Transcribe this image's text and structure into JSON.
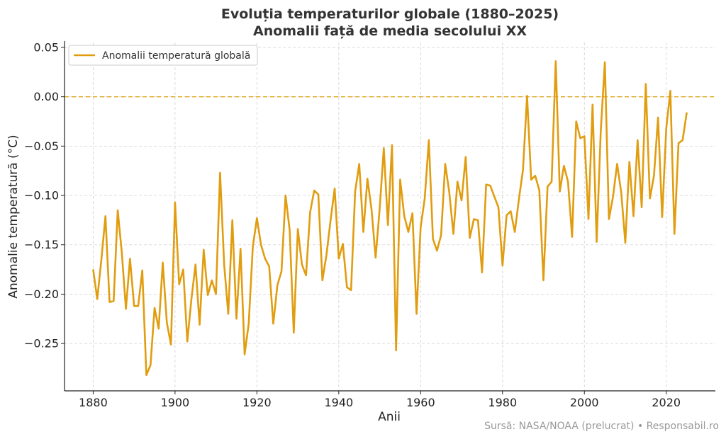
{
  "chart_data": {
    "type": "line",
    "title": "Evoluția temperaturilor globale (1880–2025)",
    "subtitle": "Anomalii față de media secolului XX",
    "xlabel": "Anii",
    "ylabel": "Anomalie temperatură (°C)",
    "xlim": [
      1873,
      2032
    ],
    "ylim": [
      -0.298,
      0.055
    ],
    "x_ticks": [
      1880,
      1900,
      1920,
      1940,
      1960,
      1980,
      2000,
      2020
    ],
    "y_ticks": [
      0.05,
      0.0,
      -0.05,
      -0.1,
      -0.15,
      -0.2,
      -0.25
    ],
    "grid": true,
    "legend_position": "top-left",
    "reference_line": {
      "y": 0.0,
      "style": "dashed",
      "color": "#E1A61A"
    },
    "series": [
      {
        "name": "Anomalii temperatură globală",
        "color": "#E19D10",
        "x": [
          1880,
          1881,
          1882,
          1883,
          1884,
          1885,
          1886,
          1887,
          1888,
          1889,
          1890,
          1891,
          1892,
          1893,
          1894,
          1895,
          1896,
          1897,
          1898,
          1899,
          1900,
          1901,
          1902,
          1903,
          1904,
          1905,
          1906,
          1907,
          1908,
          1909,
          1910,
          1911,
          1912,
          1913,
          1914,
          1915,
          1916,
          1917,
          1918,
          1919,
          1920,
          1921,
          1922,
          1923,
          1924,
          1925,
          1926,
          1927,
          1928,
          1929,
          1930,
          1931,
          1932,
          1933,
          1934,
          1935,
          1936,
          1937,
          1938,
          1939,
          1940,
          1941,
          1942,
          1943,
          1944,
          1945,
          1946,
          1947,
          1948,
          1949,
          1950,
          1951,
          1952,
          1953,
          1954,
          1955,
          1956,
          1957,
          1958,
          1959,
          1960,
          1961,
          1962,
          1963,
          1964,
          1965,
          1966,
          1967,
          1968,
          1969,
          1970,
          1971,
          1972,
          1973,
          1974,
          1975,
          1976,
          1977,
          1978,
          1979,
          1980,
          1981,
          1982,
          1983,
          1984,
          1985,
          1986,
          1987,
          1988,
          1989,
          1990,
          1991,
          1992,
          1993,
          1994,
          1995,
          1996,
          1997,
          1998,
          1999,
          2000,
          2001,
          2002,
          2003,
          2004,
          2005,
          2006,
          2007,
          2008,
          2009,
          2010,
          2011,
          2012,
          2013,
          2014,
          2015,
          2016,
          2017,
          2018,
          2019,
          2020,
          2021,
          2022,
          2023,
          2024,
          2025
        ],
        "values": [
          -0.175,
          -0.205,
          -0.165,
          -0.121,
          -0.208,
          -0.207,
          -0.115,
          -0.158,
          -0.215,
          -0.164,
          -0.212,
          -0.212,
          -0.176,
          -0.282,
          -0.272,
          -0.214,
          -0.235,
          -0.168,
          -0.229,
          -0.251,
          -0.107,
          -0.19,
          -0.175,
          -0.248,
          -0.205,
          -0.17,
          -0.231,
          -0.155,
          -0.201,
          -0.186,
          -0.2,
          -0.077,
          -0.17,
          -0.22,
          -0.125,
          -0.225,
          -0.154,
          -0.261,
          -0.23,
          -0.152,
          -0.123,
          -0.15,
          -0.164,
          -0.172,
          -0.23,
          -0.191,
          -0.177,
          -0.1,
          -0.135,
          -0.239,
          -0.134,
          -0.17,
          -0.181,
          -0.117,
          -0.095,
          -0.099,
          -0.186,
          -0.16,
          -0.125,
          -0.093,
          -0.164,
          -0.149,
          -0.193,
          -0.196,
          -0.096,
          -0.068,
          -0.137,
          -0.083,
          -0.114,
          -0.163,
          -0.113,
          -0.052,
          -0.13,
          -0.049,
          -0.257,
          -0.084,
          -0.121,
          -0.137,
          -0.118,
          -0.22,
          -0.132,
          -0.103,
          -0.044,
          -0.144,
          -0.156,
          -0.14,
          -0.068,
          -0.097,
          -0.139,
          -0.086,
          -0.105,
          -0.061,
          -0.143,
          -0.124,
          -0.125,
          -0.178,
          -0.089,
          -0.09,
          -0.101,
          -0.112,
          -0.171,
          -0.12,
          -0.116,
          -0.137,
          -0.104,
          -0.074,
          0.001,
          -0.084,
          -0.08,
          -0.095,
          -0.186,
          -0.091,
          -0.086,
          0.036,
          -0.096,
          -0.07,
          -0.086,
          -0.142,
          -0.025,
          -0.042,
          -0.04,
          -0.124,
          -0.008,
          -0.147,
          -0.035,
          0.035,
          -0.124,
          -0.101,
          -0.068,
          -0.097,
          -0.148,
          -0.066,
          -0.121,
          -0.044,
          -0.112,
          0.013,
          -0.103,
          -0.08,
          -0.021,
          -0.122,
          -0.032,
          0.006,
          -0.139,
          -0.047,
          -0.044,
          -0.016
        ]
      }
    ]
  },
  "footer": {
    "source": "Sursă: NASA/NOAA (prelucrat) • Responsabil.ro"
  }
}
